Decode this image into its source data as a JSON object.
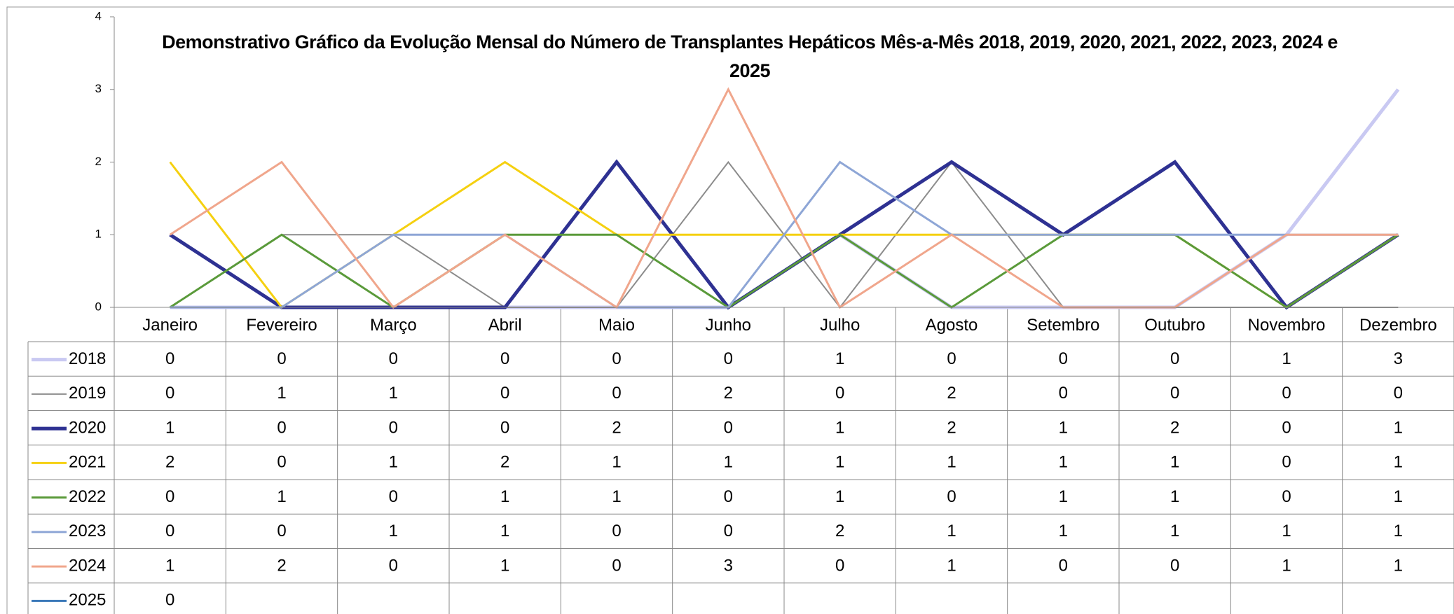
{
  "chart_data": {
    "type": "line",
    "title": "Demonstrativo Gráfico da Evolução Mensal do Número de Transplantes Hepáticos Mês-a-Mês 2018, 2019, 2020, 2021, 2022, 2023, 2024 e  2025",
    "categories": [
      "Janeiro",
      "Fevereiro",
      "Março",
      "Abril",
      "Maio",
      "Junho",
      "Julho",
      "Agosto",
      "Setembro",
      "Outubro",
      "Novembro",
      "Dezembro"
    ],
    "ylim": [
      0,
      4
    ],
    "yticks": [
      0,
      1,
      2,
      3,
      4
    ],
    "grid": false,
    "data_table": true,
    "series": [
      {
        "name": "2018",
        "color": "#c9c9f2",
        "values": [
          0,
          0,
          0,
          0,
          0,
          0,
          1,
          0,
          0,
          0,
          1,
          3
        ]
      },
      {
        "name": "2019",
        "color": "#8c8c8c",
        "values": [
          0,
          1,
          1,
          0,
          0,
          2,
          0,
          2,
          0,
          0,
          0,
          0
        ]
      },
      {
        "name": "2020",
        "color": "#2e3192",
        "values": [
          1,
          0,
          0,
          0,
          2,
          0,
          1,
          2,
          1,
          2,
          0,
          1
        ]
      },
      {
        "name": "2021",
        "color": "#f5d010",
        "values": [
          2,
          0,
          1,
          2,
          1,
          1,
          1,
          1,
          1,
          1,
          0,
          1
        ]
      },
      {
        "name": "2022",
        "color": "#5a9a3a",
        "values": [
          0,
          1,
          0,
          1,
          1,
          0,
          1,
          0,
          1,
          1,
          0,
          1
        ]
      },
      {
        "name": "2023",
        "color": "#8ea6d6",
        "values": [
          0,
          0,
          1,
          1,
          0,
          0,
          2,
          1,
          1,
          1,
          1,
          1
        ]
      },
      {
        "name": "2024",
        "color": "#f0a68c",
        "values": [
          1,
          2,
          0,
          1,
          0,
          3,
          0,
          1,
          0,
          0,
          1,
          1
        ]
      },
      {
        "name": "2025",
        "color": "#3a78b8",
        "values": [
          0,
          null,
          null,
          null,
          null,
          null,
          null,
          null,
          null,
          null,
          null,
          null
        ]
      }
    ]
  }
}
